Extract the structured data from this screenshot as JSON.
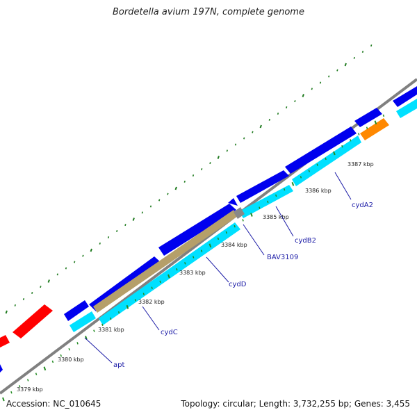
{
  "title": "Bordetella avium 197N, complete genome",
  "footer": {
    "accession": "Accession: NC_010645",
    "summary": "Topology: circular; Length: 3,732,255 bp; Genes: 3,455"
  },
  "colors": {
    "backbone": "#808080",
    "cds_forward": "#0000ee",
    "cds_reverse": "#00e0ff",
    "reverse_light": "#33bbee",
    "rrna_trna": "#ff0000",
    "misc": "#ff8800",
    "pseudo": "#888888",
    "tick_major": "#1e7a1e",
    "tick_minor": "#228b22",
    "label": "#1a1aa6"
  },
  "tick_labels": [
    "3379 kbp",
    "3380 kbp",
    "3381 kbp",
    "3382 kbp",
    "3383 kbp",
    "3384 kbp",
    "3385 kbp",
    "3386 kbp",
    "3387 kbp"
  ],
  "gene_labels": [
    "apt",
    "cydC",
    "cydD",
    "BAV3109",
    "cydB2",
    "cydA2"
  ]
}
